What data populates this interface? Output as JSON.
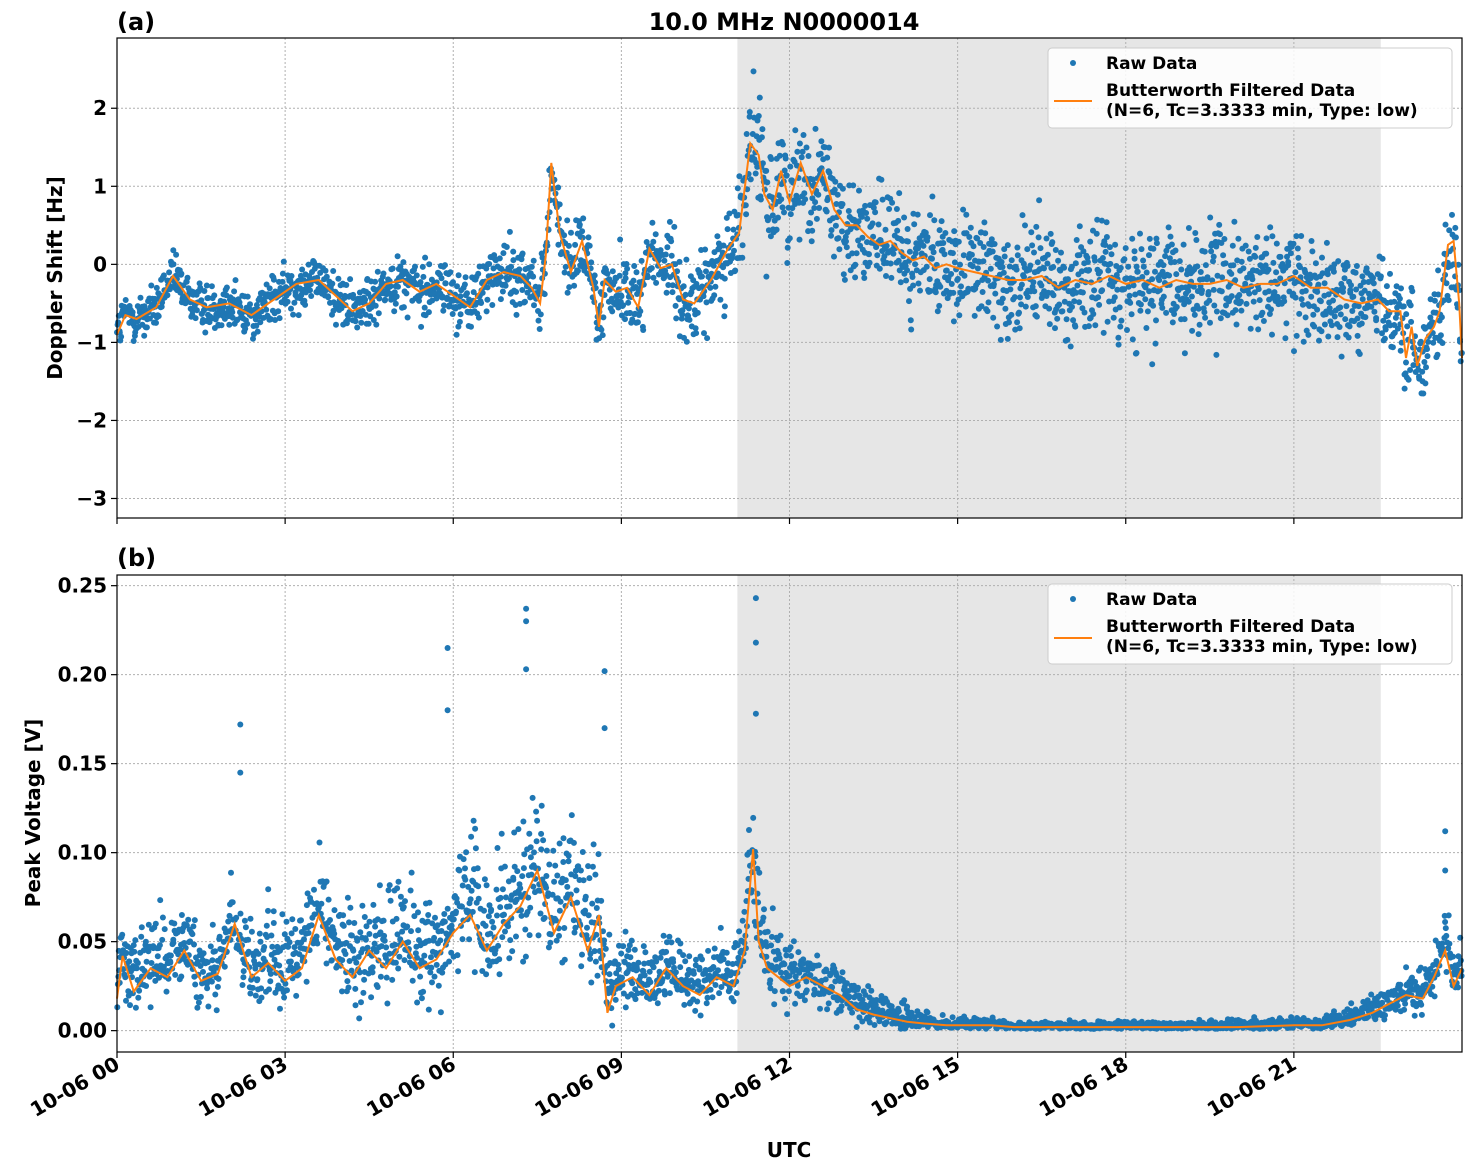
{
  "figure": {
    "title": "10.0 MHz N0000014",
    "xlabel": "UTC",
    "x_ticks": [
      "10-06 00",
      "10-06 03",
      "10-06 06",
      "10-06 09",
      "10-06 12",
      "10-06 15",
      "10-06 18",
      "10-06 21"
    ],
    "colors": {
      "raw": "#1f77b4",
      "filtered": "#ff7f0e",
      "shade": "#e6e6e6"
    }
  },
  "chart_data": [
    {
      "type": "scatter",
      "panel_label": "(a)",
      "ylabel": "Doppler Shift [Hz]",
      "x_unit": "hours UTC since 10-06 00:00",
      "xlim": [
        0,
        24
      ],
      "ylim": [
        -3.25,
        2.9
      ],
      "y_ticks": [
        "−3",
        "−2",
        "−1",
        "0",
        "1",
        "2"
      ],
      "y_tick_values": [
        -3,
        -2,
        -1,
        0,
        1,
        2
      ],
      "shaded_x": [
        11.07,
        22.55
      ],
      "grid": true,
      "legend_position": "top-right",
      "series": [
        {
          "name": "Raw Data",
          "marker": "dot",
          "spread_profile": {
            "x": [
              0,
              3,
              6,
              8,
              9.5,
              10.8,
              11.4,
              13,
              14,
              16,
              18,
              21,
              22.5,
              23.5,
              24
            ],
            "halfwidth": [
              0.25,
              0.25,
              0.3,
              0.35,
              0.4,
              0.45,
              0.6,
              0.5,
              0.5,
              0.6,
              0.6,
              0.55,
              0.4,
              0.45,
              0.6
            ]
          }
        },
        {
          "name": "Butterworth Filtered Data\n(N=6, Tc=3.3333 min, Type: low)",
          "line": true,
          "points": {
            "x": [
              0,
              0.15,
              0.35,
              0.7,
              1.0,
              1.3,
              1.6,
              2.0,
              2.4,
              2.8,
              3.2,
              3.6,
              3.9,
              4.2,
              4.5,
              4.8,
              5.1,
              5.4,
              5.7,
              6.0,
              6.3,
              6.6,
              6.9,
              7.2,
              7.4,
              7.55,
              7.65,
              7.75,
              7.9,
              8.1,
              8.3,
              8.5,
              8.6,
              8.7,
              8.9,
              9.1,
              9.3,
              9.5,
              9.7,
              9.9,
              10.1,
              10.3,
              10.6,
              10.9,
              11.1,
              11.3,
              11.45,
              11.55,
              11.7,
              11.85,
              12.0,
              12.2,
              12.4,
              12.6,
              12.8,
              13.0,
              13.2,
              13.4,
              13.6,
              13.8,
              14.0,
              14.2,
              14.4,
              14.6,
              14.8,
              15.0,
              15.3,
              15.6,
              15.9,
              16.2,
              16.5,
              16.8,
              17.1,
              17.4,
              17.7,
              18.0,
              18.3,
              18.6,
              18.9,
              19.2,
              19.5,
              19.8,
              20.1,
              20.4,
              20.7,
              21.0,
              21.3,
              21.6,
              21.9,
              22.2,
              22.5,
              22.7,
              22.9,
              23.0,
              23.1,
              23.2,
              23.35,
              23.5,
              23.6,
              23.75,
              23.85,
              23.95,
              24.0
            ],
            "y": [
              -0.9,
              -0.65,
              -0.7,
              -0.55,
              -0.15,
              -0.45,
              -0.55,
              -0.5,
              -0.65,
              -0.45,
              -0.25,
              -0.2,
              -0.4,
              -0.6,
              -0.5,
              -0.25,
              -0.2,
              -0.35,
              -0.25,
              -0.4,
              -0.55,
              -0.2,
              -0.1,
              -0.15,
              -0.3,
              -0.5,
              0.1,
              1.3,
              0.4,
              -0.1,
              0.3,
              -0.3,
              -0.8,
              -0.2,
              -0.35,
              -0.3,
              -0.55,
              0.2,
              -0.05,
              0.0,
              -0.45,
              -0.5,
              -0.2,
              0.2,
              0.4,
              1.55,
              1.4,
              0.9,
              0.7,
              1.2,
              0.8,
              1.3,
              0.9,
              1.2,
              0.7,
              0.5,
              0.5,
              0.35,
              0.25,
              0.3,
              0.15,
              0.05,
              0.1,
              -0.05,
              0.0,
              -0.05,
              -0.1,
              -0.15,
              -0.2,
              -0.2,
              -0.15,
              -0.3,
              -0.2,
              -0.25,
              -0.15,
              -0.25,
              -0.2,
              -0.3,
              -0.2,
              -0.25,
              -0.25,
              -0.2,
              -0.3,
              -0.25,
              -0.25,
              -0.15,
              -0.3,
              -0.3,
              -0.45,
              -0.5,
              -0.45,
              -0.6,
              -0.6,
              -1.2,
              -0.8,
              -1.3,
              -0.95,
              -0.8,
              -0.6,
              0.25,
              0.3,
              -0.5,
              -1.2
            ]
          }
        }
      ]
    },
    {
      "type": "scatter",
      "panel_label": "(b)",
      "ylabel": "Peak Voltage [V]",
      "x_unit": "hours UTC since 10-06 00:00",
      "xlim": [
        0,
        24
      ],
      "ylim": [
        -0.012,
        0.256
      ],
      "y_ticks": [
        "0.00",
        "0.05",
        "0.10",
        "0.15",
        "0.20",
        "0.25"
      ],
      "y_tick_values": [
        0,
        0.05,
        0.1,
        0.15,
        0.2,
        0.25
      ],
      "shaded_x": [
        11.07,
        22.55
      ],
      "grid": true,
      "legend_position": "top-right",
      "series": [
        {
          "name": "Raw Data",
          "marker": "dot",
          "spread_profile": {
            "x": [
              0,
              3,
              6,
              7,
              8.7,
              9,
              11,
              11.4,
              12.5,
              13.5,
              14.5,
              16,
              21.5,
              22.5,
              24
            ],
            "halfwidth": [
              0.02,
              0.025,
              0.03,
              0.035,
              0.03,
              0.015,
              0.015,
              0.03,
              0.015,
              0.01,
              0.004,
              0.002,
              0.003,
              0.008,
              0.015
            ]
          },
          "outliers": {
            "x": [
              2.2,
              2.2,
              5.9,
              5.9,
              7.3,
              7.3,
              7.3,
              8.7,
              8.7,
              11.4,
              11.4,
              11.4,
              23.7,
              23.7
            ],
            "y": [
              0.172,
              0.145,
              0.215,
              0.18,
              0.237,
              0.23,
              0.203,
              0.202,
              0.17,
              0.243,
              0.218,
              0.178,
              0.112,
              0.09
            ]
          }
        },
        {
          "name": "Butterworth Filtered Data\n(N=6, Tc=3.3333 min, Type: low)",
          "line": true,
          "points": {
            "x": [
              0,
              0.1,
              0.3,
              0.6,
              0.9,
              1.2,
              1.5,
              1.8,
              2.1,
              2.4,
              2.7,
              3.0,
              3.3,
              3.6,
              3.9,
              4.2,
              4.5,
              4.8,
              5.1,
              5.4,
              5.7,
              6.0,
              6.3,
              6.6,
              6.9,
              7.2,
              7.5,
              7.8,
              8.1,
              8.4,
              8.6,
              8.75,
              8.9,
              9.2,
              9.5,
              9.8,
              10.1,
              10.4,
              10.7,
              11.0,
              11.2,
              11.35,
              11.45,
              11.6,
              11.8,
              12.0,
              12.3,
              12.6,
              12.9,
              13.2,
              13.5,
              13.8,
              14.1,
              14.4,
              14.8,
              15.2,
              15.6,
              16.0,
              17.0,
              18.0,
              19.0,
              20.0,
              21.0,
              21.5,
              22.0,
              22.4,
              22.7,
              23.0,
              23.3,
              23.5,
              23.7,
              23.85,
              24.0
            ],
            "y": [
              0.018,
              0.042,
              0.022,
              0.035,
              0.03,
              0.045,
              0.028,
              0.032,
              0.06,
              0.03,
              0.038,
              0.028,
              0.035,
              0.065,
              0.04,
              0.03,
              0.045,
              0.035,
              0.05,
              0.035,
              0.04,
              0.055,
              0.065,
              0.045,
              0.06,
              0.07,
              0.09,
              0.055,
              0.075,
              0.045,
              0.065,
              0.01,
              0.025,
              0.03,
              0.02,
              0.035,
              0.025,
              0.02,
              0.03,
              0.025,
              0.045,
              0.102,
              0.05,
              0.035,
              0.03,
              0.025,
              0.03,
              0.025,
              0.02,
              0.012,
              0.009,
              0.007,
              0.005,
              0.004,
              0.003,
              0.003,
              0.003,
              0.002,
              0.002,
              0.002,
              0.002,
              0.002,
              0.003,
              0.003,
              0.006,
              0.01,
              0.015,
              0.02,
              0.018,
              0.03,
              0.045,
              0.025,
              0.035
            ]
          }
        }
      ]
    }
  ]
}
